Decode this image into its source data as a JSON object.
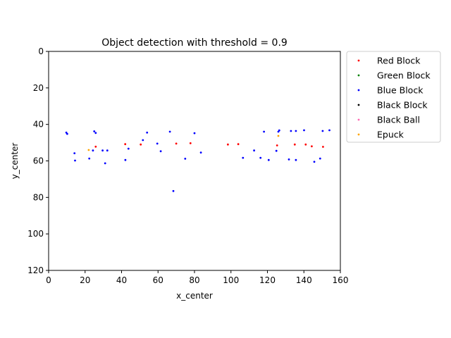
{
  "chart_data": {
    "type": "scatter",
    "title": "Object detection with threshold = 0.9",
    "xlabel": "x_center",
    "ylabel": "y_center",
    "xlim": [
      0,
      160
    ],
    "ylim": [
      120,
      0
    ],
    "y_inverted": true,
    "grid": false,
    "legend_position": "outside-right-top",
    "xticks": [
      0,
      20,
      40,
      60,
      80,
      100,
      120,
      140,
      160
    ],
    "yticks": [
      0,
      20,
      40,
      60,
      80,
      100,
      120
    ],
    "series": [
      {
        "name": "Red Block",
        "color": "#ff0000",
        "points": [
          [
            25.8,
            52.2
          ],
          [
            42.0,
            50.8
          ],
          [
            50.5,
            51.0
          ],
          [
            70.0,
            50.5
          ],
          [
            77.8,
            50.3
          ],
          [
            98.3,
            51.0
          ],
          [
            104.0,
            50.8
          ],
          [
            125.3,
            51.5
          ],
          [
            135.0,
            51.0
          ],
          [
            141.0,
            51.0
          ],
          [
            144.3,
            52.0
          ],
          [
            150.5,
            52.3
          ]
        ]
      },
      {
        "name": "Green Block",
        "color": "#008000",
        "points": []
      },
      {
        "name": "Blue Block",
        "color": "#0000ff",
        "points": [
          [
            9.7,
            44.5
          ],
          [
            10.2,
            45.2
          ],
          [
            14.2,
            55.8
          ],
          [
            14.5,
            59.8
          ],
          [
            22.3,
            58.7
          ],
          [
            24.3,
            54.3
          ],
          [
            25.0,
            43.8
          ],
          [
            25.8,
            44.7
          ],
          [
            29.6,
            54.3
          ],
          [
            31.0,
            61.3
          ],
          [
            32.2,
            54.3
          ],
          [
            42.1,
            59.5
          ],
          [
            43.8,
            53.3
          ],
          [
            51.7,
            48.6
          ],
          [
            54.0,
            44.5
          ],
          [
            59.6,
            50.5
          ],
          [
            61.5,
            54.7
          ],
          [
            66.5,
            44.0
          ],
          [
            68.4,
            76.5
          ],
          [
            74.9,
            58.8
          ],
          [
            80.0,
            44.8
          ],
          [
            83.5,
            55.4
          ],
          [
            106.6,
            58.3
          ],
          [
            112.7,
            54.3
          ],
          [
            116.2,
            58.3
          ],
          [
            118.1,
            44.0
          ],
          [
            120.7,
            59.5
          ],
          [
            124.9,
            54.5
          ],
          [
            126.0,
            44.0
          ],
          [
            126.5,
            43.3
          ],
          [
            131.8,
            59.2
          ],
          [
            132.9,
            43.6
          ],
          [
            135.6,
            59.5
          ],
          [
            135.6,
            43.6
          ],
          [
            140.1,
            43.2
          ],
          [
            145.7,
            60.5
          ],
          [
            148.9,
            58.7
          ],
          [
            150.3,
            43.6
          ],
          [
            154.0,
            43.2
          ]
        ]
      },
      {
        "name": "Black Block",
        "color": "#000000",
        "points": []
      },
      {
        "name": "Black Ball",
        "color": "#ff69b4",
        "points": []
      },
      {
        "name": "Epuck",
        "color": "#ffa500",
        "points": [
          [
            22.0,
            54.0
          ],
          [
            126.0,
            46.3
          ]
        ]
      }
    ]
  }
}
